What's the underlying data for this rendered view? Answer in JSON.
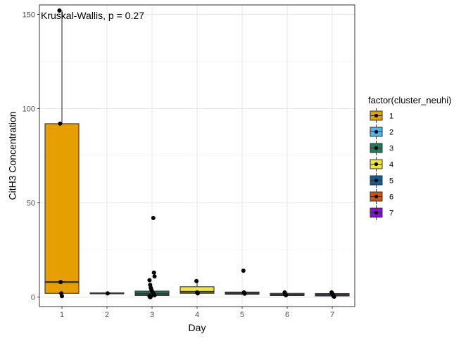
{
  "chart_data": {
    "type": "boxplot",
    "title": "",
    "annotation": "Kruskal-Wallis, p = 0.27",
    "xlabel": "Day",
    "ylabel": "CitH3 Concentration",
    "ylim": [
      -5,
      155
    ],
    "y_ticks": [
      0,
      50,
      100,
      150
    ],
    "categories": [
      "1",
      "2",
      "3",
      "4",
      "5",
      "6",
      "7"
    ],
    "grid": true,
    "legend": {
      "title": "factor(cluster_neuhi)",
      "position": "right",
      "entries": [
        {
          "label": "1",
          "color": "#E69F00"
        },
        {
          "label": "2",
          "color": "#56B4E9"
        },
        {
          "label": "3",
          "color": "#1B7F5E"
        },
        {
          "label": "4",
          "color": "#F0E442"
        },
        {
          "label": "5",
          "color": "#0F5C9C"
        },
        {
          "label": "6",
          "color": "#C8551A"
        },
        {
          "label": "7",
          "color": "#8A0FD6"
        }
      ]
    },
    "boxes": [
      {
        "x": "1",
        "q1": 2.0,
        "median": 8.0,
        "q3": 92.0,
        "whisker_low": 0.5,
        "whisker_high": 152.0,
        "fill": "#E69F00"
      },
      {
        "x": "2",
        "q1": 1.8,
        "median": 2.0,
        "q3": 2.3,
        "whisker_low": 1.8,
        "whisker_high": 2.3,
        "fill": "#56B4E9"
      },
      {
        "x": "3",
        "q1": 0.8,
        "median": 1.8,
        "q3": 3.2,
        "whisker_low": 0.0,
        "whisker_high": 5.5,
        "fill": "#1B7F5E"
      },
      {
        "x": "4",
        "q1": 2.0,
        "median": 2.8,
        "q3": 5.5,
        "whisker_low": 2.0,
        "whisker_high": 8.5,
        "fill": "#F0E442"
      },
      {
        "x": "5",
        "q1": 1.5,
        "median": 2.0,
        "q3": 2.7,
        "whisker_low": 1.2,
        "whisker_high": 3.0,
        "fill": "#0F5C9C"
      },
      {
        "x": "6",
        "q1": 0.8,
        "median": 1.3,
        "q3": 2.0,
        "whisker_low": 0.5,
        "whisker_high": 2.5,
        "fill": "#C8551A"
      },
      {
        "x": "7",
        "q1": 0.6,
        "median": 1.2,
        "q3": 1.9,
        "whisker_low": 0.2,
        "whisker_high": 2.5,
        "fill": "#8A0FD6"
      }
    ],
    "points": [
      {
        "x": "1",
        "y": 152
      },
      {
        "x": "1",
        "y": 92
      },
      {
        "x": "1",
        "y": 8
      },
      {
        "x": "1",
        "y": 2
      },
      {
        "x": "1",
        "y": 0.5
      },
      {
        "x": "2",
        "y": 2
      },
      {
        "x": "3",
        "y": 42
      },
      {
        "x": "3",
        "y": 13
      },
      {
        "x": "3",
        "y": 11
      },
      {
        "x": "3",
        "y": 9
      },
      {
        "x": "3",
        "y": 6.5
      },
      {
        "x": "3",
        "y": 5
      },
      {
        "x": "3",
        "y": 4
      },
      {
        "x": "3",
        "y": 3
      },
      {
        "x": "3",
        "y": 2.5
      },
      {
        "x": "3",
        "y": 2
      },
      {
        "x": "3",
        "y": 1.5
      },
      {
        "x": "3",
        "y": 1
      },
      {
        "x": "3",
        "y": 0.5
      },
      {
        "x": "3",
        "y": 0
      },
      {
        "x": "3",
        "y": 0.2
      },
      {
        "x": "4",
        "y": 8.5
      },
      {
        "x": "4",
        "y": 2.5
      },
      {
        "x": "4",
        "y": 2
      },
      {
        "x": "5",
        "y": 14
      },
      {
        "x": "5",
        "y": 2.5
      },
      {
        "x": "5",
        "y": 1.8
      },
      {
        "x": "6",
        "y": 2.5
      },
      {
        "x": "6",
        "y": 1.5
      },
      {
        "x": "6",
        "y": 1
      },
      {
        "x": "7",
        "y": 2.5
      },
      {
        "x": "7",
        "y": 2
      },
      {
        "x": "7",
        "y": 1.2
      },
      {
        "x": "7",
        "y": 0.5
      },
      {
        "x": "7",
        "y": 0.2
      }
    ]
  }
}
